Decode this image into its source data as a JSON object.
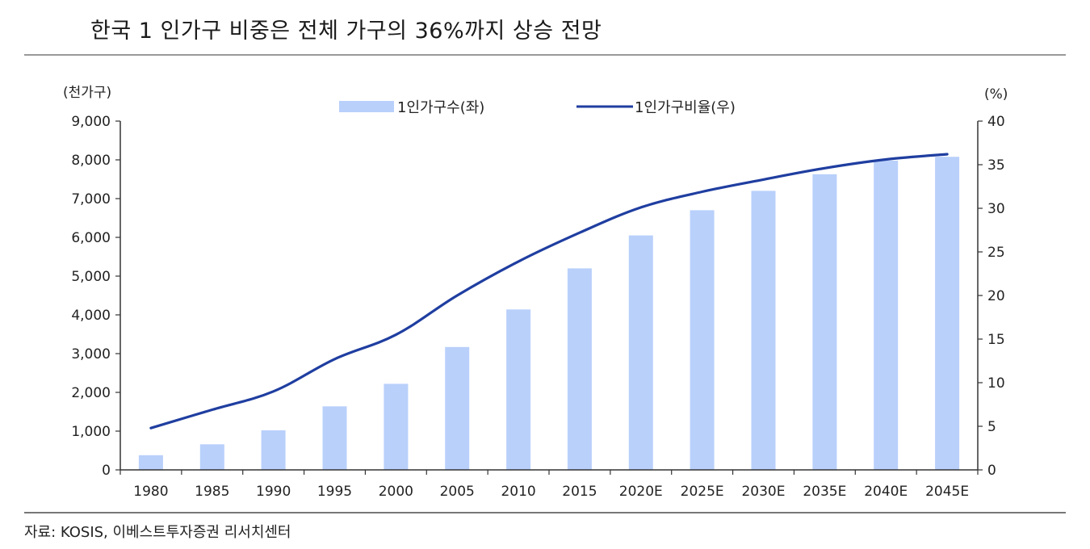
{
  "page": {
    "title": "한국 1 인가구 비중은 전체 가구의 36%까지 상승 전망",
    "source": "자료: KOSIS, 이베스트투자증권 리서치센터"
  },
  "colors": {
    "bar": "#b9d0fb",
    "line": "#1f3ea0",
    "axis": "#333333"
  },
  "chart_data": {
    "type": "bar+line",
    "title": "한국 1 인가구 비중은 전체 가구의 36%까지 상승 전망",
    "categories": [
      "1980",
      "1985",
      "1990",
      "1995",
      "2000",
      "2005",
      "2010",
      "2015",
      "2020E",
      "2025E",
      "2030E",
      "2035E",
      "2040E",
      "2045E"
    ],
    "y_left": {
      "label": "(천가구)",
      "range": [
        0,
        9000
      ],
      "ticks": [
        0,
        1000,
        2000,
        3000,
        4000,
        5000,
        6000,
        7000,
        8000,
        9000
      ],
      "tick_labels": [
        "0",
        "1,000",
        "2,000",
        "3,000",
        "4,000",
        "5,000",
        "6,000",
        "7,000",
        "8,000",
        "9,000"
      ]
    },
    "y_right": {
      "label": "(%)",
      "range": [
        0,
        40
      ],
      "ticks": [
        0,
        5,
        10,
        15,
        20,
        25,
        30,
        35,
        40
      ],
      "tick_labels": [
        "0",
        "5",
        "10",
        "15",
        "20",
        "25",
        "30",
        "35",
        "40"
      ]
    },
    "series": [
      {
        "name": "1인가구수(좌)",
        "type": "bar",
        "axis": "left",
        "values": [
          380,
          660,
          1020,
          1640,
          2220,
          3170,
          4140,
          5200,
          6050,
          6700,
          7200,
          7630,
          7980,
          8080
        ]
      },
      {
        "name": "1인가구비율(우)",
        "type": "line",
        "axis": "right",
        "values": [
          4.8,
          6.9,
          9.0,
          12.7,
          15.5,
          20.0,
          23.9,
          27.2,
          30.1,
          31.9,
          33.3,
          34.6,
          35.6,
          36.2
        ]
      }
    ],
    "legend_position": "top-center",
    "grid": false
  }
}
